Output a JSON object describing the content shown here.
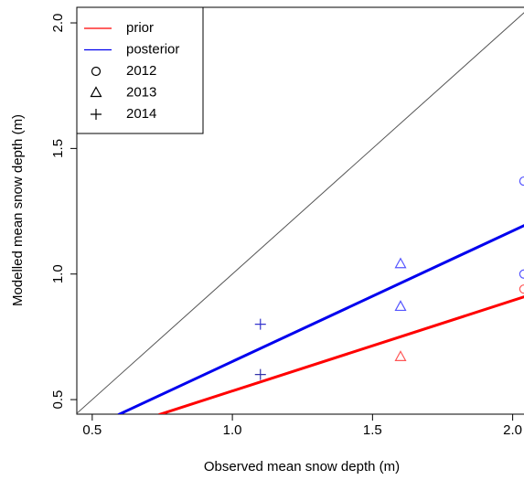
{
  "chart_data": {
    "type": "scatter",
    "xlabel": "Observed mean snow depth (m)",
    "ylabel": "Modelled mean snow depth (m)",
    "xlim": [
      0.445,
      2.06
    ],
    "ylim": [
      0.442,
      2.062
    ],
    "xticks": [
      0.5,
      {
        "value": 1,
        "label": "1.0"
      },
      1.5,
      {
        "value": 2,
        "label": "2.0"
      }
    ],
    "yticks": [
      0.5,
      {
        "value": 1,
        "label": "1.0"
      },
      1.5,
      {
        "value": 2,
        "label": "2.0"
      }
    ],
    "legend": "top-left",
    "reference_line": {
      "color": "#555555",
      "x": [
        0.445,
        2.06
      ],
      "values": [
        0.445,
        2.06
      ]
    },
    "lines": [
      {
        "name": "prior",
        "color": "#ff0000",
        "x": [
          0.738,
          2.06
        ],
        "values": [
          0.44,
          0.916
        ]
      },
      {
        "name": "posterior",
        "color": "#0000ee",
        "x": [
          0.593,
          2.06
        ],
        "values": [
          0.44,
          1.203
        ]
      }
    ],
    "points": [
      {
        "name": "2012",
        "shape": "circle",
        "x": [
          2.04,
          2.04,
          2.04
        ],
        "values": [
          1.37,
          1.0,
          0.94
        ],
        "colors": [
          "#5555ff",
          "#5555ff",
          "#ff5555"
        ]
      },
      {
        "name": "2013",
        "shape": "triangle",
        "x": [
          1.6,
          1.6,
          1.6
        ],
        "values": [
          1.04,
          0.87,
          0.67
        ],
        "colors": [
          "#5555ff",
          "#5555ff",
          "#ff5555"
        ]
      },
      {
        "name": "2014",
        "shape": "plus",
        "x": [
          1.1,
          1.1
        ],
        "values": [
          0.8,
          0.6
        ],
        "colors": [
          "#3333cc",
          "#3333aa"
        ]
      }
    ]
  }
}
